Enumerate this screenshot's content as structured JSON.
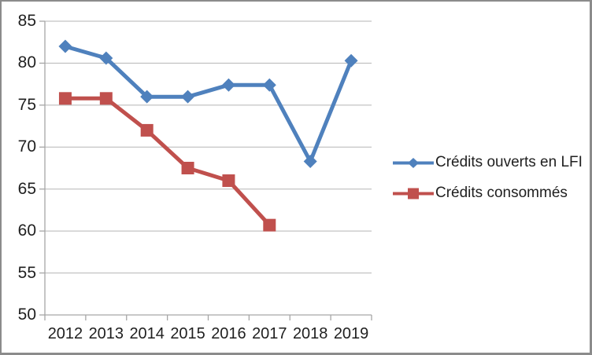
{
  "window": {
    "background": "#FFFFFF",
    "frame_border_color": "#8B8B8B"
  },
  "chart_data": {
    "type": "line",
    "title": "",
    "xlabel": "",
    "ylabel": "",
    "categories": [
      "2012",
      "2013",
      "2014",
      "2015",
      "2016",
      "2017",
      "2018",
      "2019"
    ],
    "series": [
      {
        "name": "Crédits ouverts en LFI",
        "color": "#4F81BD",
        "marker": "diamond",
        "values": [
          82,
          80.6,
          76,
          76,
          77.4,
          77.4,
          68.3,
          80.3
        ]
      },
      {
        "name": "Crédits consommés",
        "color": "#C0504D",
        "marker": "square",
        "values": [
          75.8,
          75.8,
          72,
          67.5,
          66,
          60.7,
          null,
          null
        ]
      }
    ],
    "y_axis": {
      "min": 50,
      "max": 85,
      "step": 5,
      "tick_labels": [
        "50",
        "55",
        "60",
        "65",
        "70",
        "75",
        "80",
        "85"
      ]
    },
    "grid": true,
    "gridline_color": "#B5B5B5",
    "axis_color": "#A6A6A6",
    "tick_label_color": "#1F1F1F",
    "legend_position": "right"
  }
}
